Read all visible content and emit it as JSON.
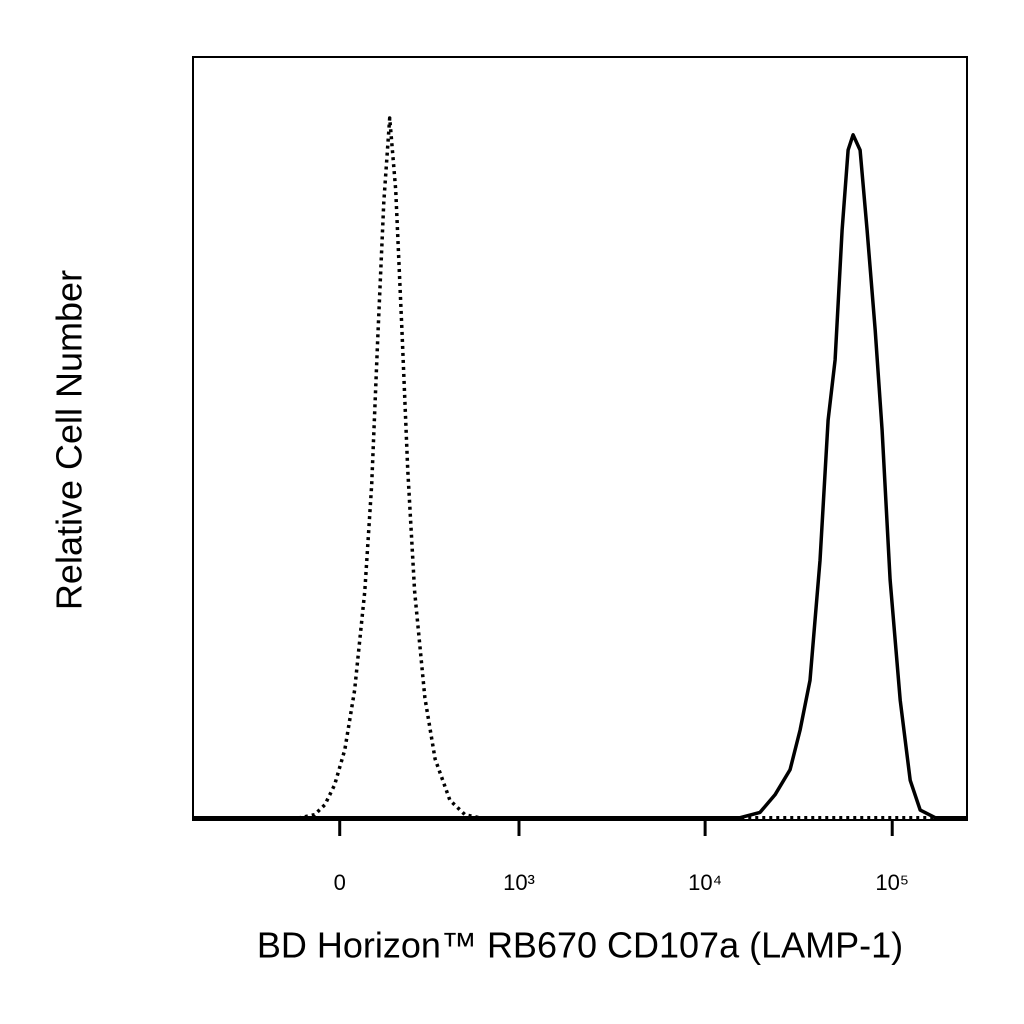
{
  "chart_data": {
    "type": "line",
    "x_scale": "biexponential",
    "x_label": "BD Horizon™ RB670 CD107a (LAMP-1)",
    "y_label": "Relative Cell Number",
    "xlim": [
      -660,
      251000
    ],
    "ylim": [
      0,
      100
    ],
    "xticks": [
      0,
      {
        "value": 1000,
        "label": "10³"
      },
      {
        "value": 10000,
        "label": "10⁴"
      },
      {
        "value": 100000,
        "label": "10⁵"
      }
    ],
    "series": [
      {
        "color": "#000000",
        "line_style": "dotted",
        "x": [
          -660,
          -114,
          -70,
          -41,
          -14,
          14,
          41,
          70,
          90,
          108,
          127,
          146,
          166,
          188,
          209,
          236,
          279,
          326,
          404,
          497,
          602,
          251000
        ],
        "values": [
          0.3,
          0.3,
          0.7,
          2,
          4.6,
          9.2,
          17,
          30,
          44,
          63,
          81,
          92,
          82.6,
          64,
          46,
          30,
          16,
          8,
          2.6,
          0.7,
          0.3,
          0.3
        ]
      },
      {
        "color": "#000000",
        "line_style": "solid",
        "x": [
          -660,
          15390,
          19650,
          23640,
          28460,
          32180,
          36370,
          41140,
          45420,
          49500,
          53950,
          58100,
          61800,
          67350,
          73370,
          81060,
          88310,
          97450,
          110300,
          124800,
          141100,
          169800,
          251000
        ],
        "values": [
          0.3,
          0.3,
          1,
          3.3,
          6.6,
          11.8,
          18.3,
          34,
          52.4,
          60.3,
          77.3,
          87.8,
          89.8,
          87.8,
          77.3,
          64.2,
          51.1,
          31.5,
          15.7,
          5.2,
          1.3,
          0.3,
          0.3
        ]
      }
    ]
  }
}
